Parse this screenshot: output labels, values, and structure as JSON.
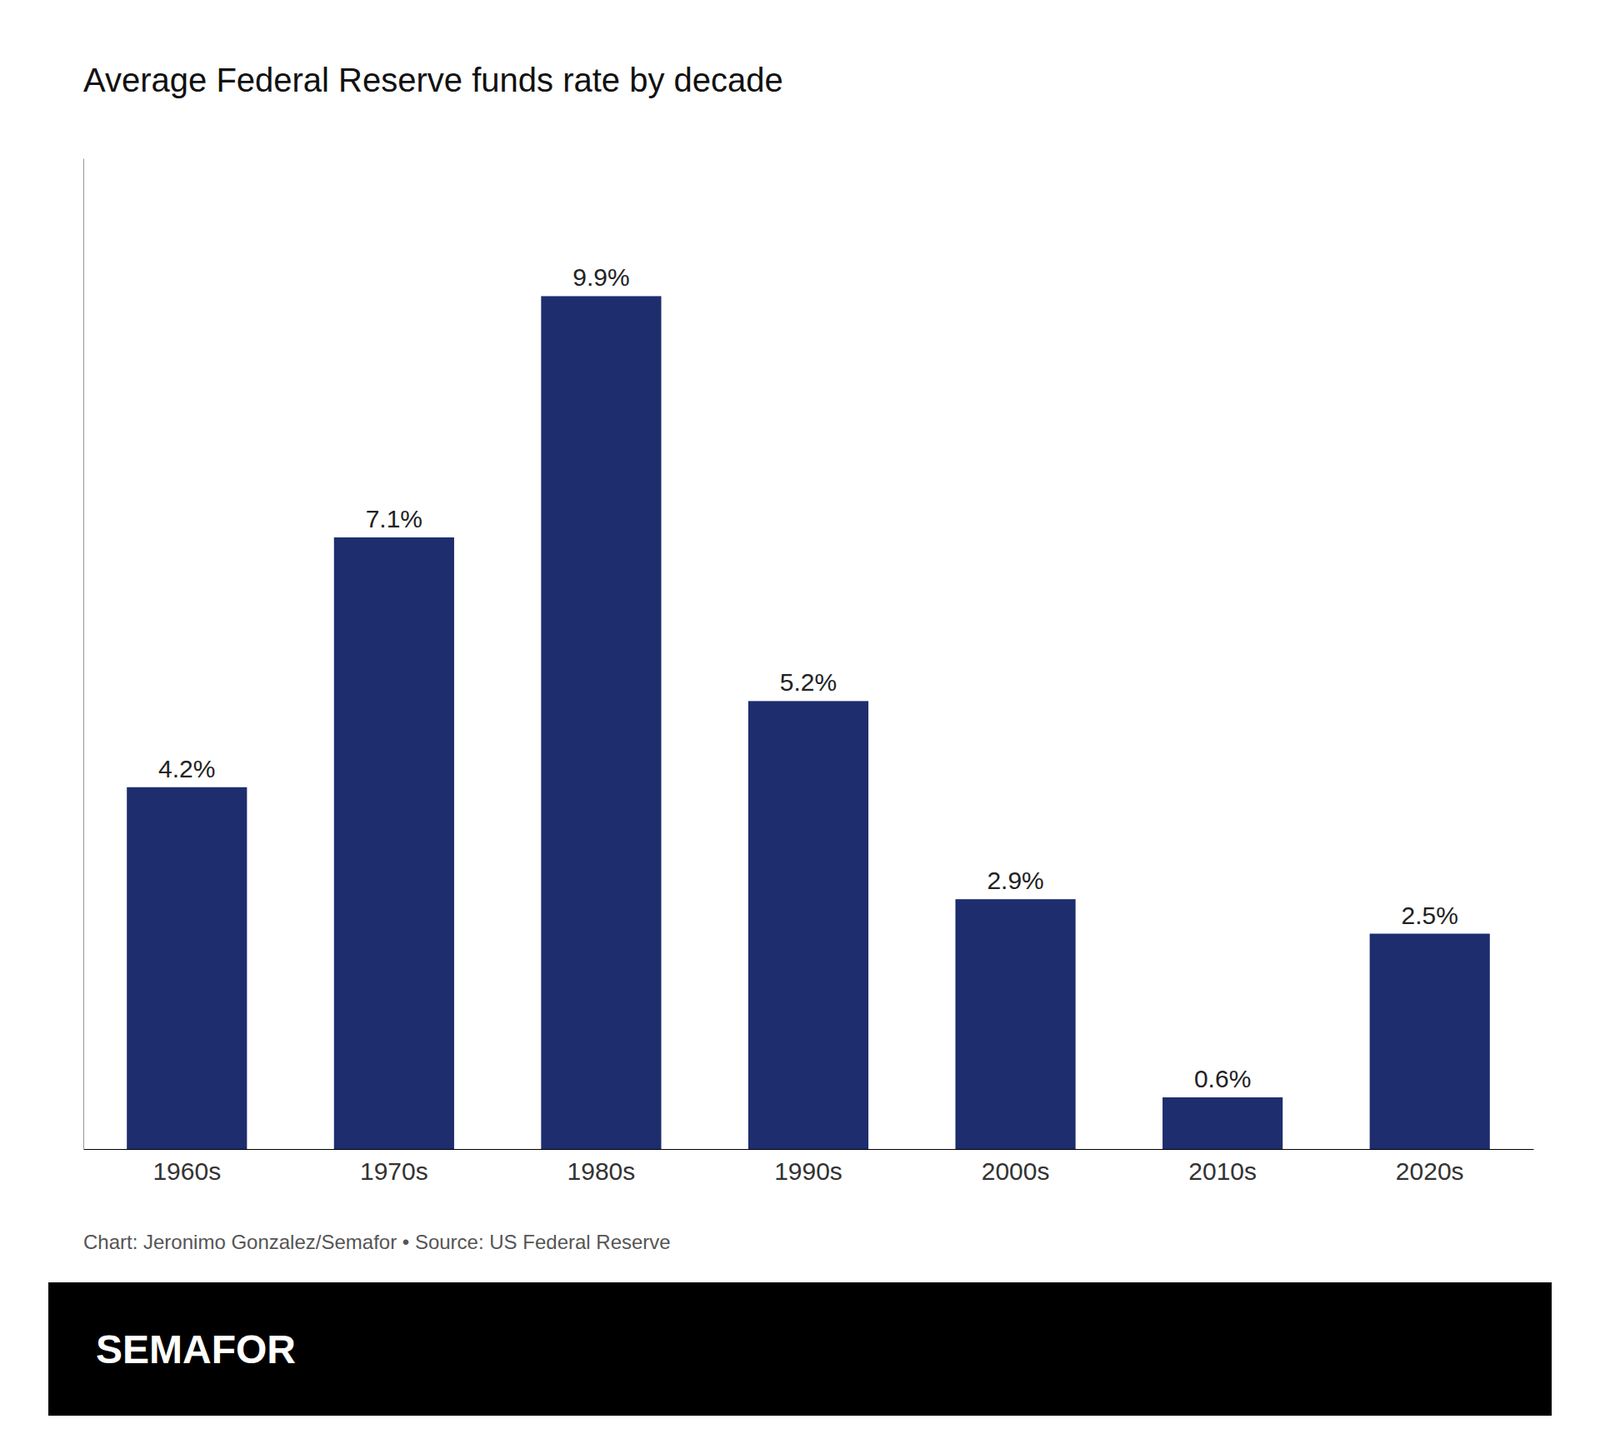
{
  "chart_data": {
    "type": "bar",
    "title": "Average Federal Reserve funds rate by decade",
    "categories": [
      "1960s",
      "1970s",
      "1980s",
      "1990s",
      "2000s",
      "2010s",
      "2020s"
    ],
    "values": [
      4.2,
      7.1,
      9.9,
      5.2,
      2.9,
      0.6,
      2.5
    ],
    "value_labels": [
      "4.2%",
      "7.1%",
      "9.9%",
      "5.2%",
      "2.9%",
      "0.6%",
      "2.5%"
    ],
    "data_labels": true,
    "color": "#1e2d6e",
    "ylim": [
      0,
      11.5
    ],
    "tick_labels": "x",
    "grid": false,
    "annotations": [
      "Chart: Jeronimo Gonzalez/Semafor • Source: US Federal Reserve",
      "SEMAFOR"
    ]
  }
}
